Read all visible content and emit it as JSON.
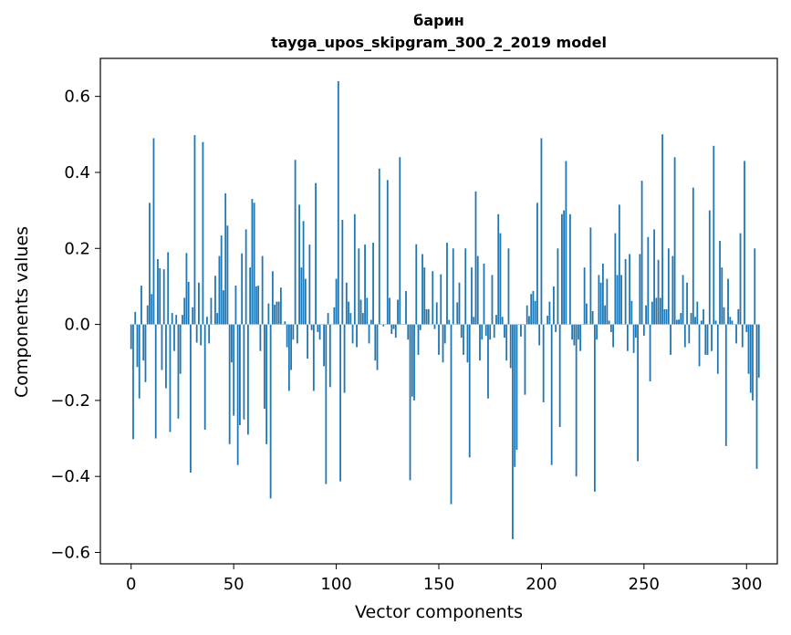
{
  "chart_data": {
    "type": "bar",
    "title": "барин",
    "subtitle": "tayga_upos_skipgram_300_2_2019 model",
    "xlabel": "Vector components",
    "ylabel": "Components values",
    "xlim": [
      -15,
      315
    ],
    "ylim": [
      -0.63,
      0.7
    ],
    "x_ticks": [
      0,
      50,
      100,
      150,
      200,
      250,
      300
    ],
    "y_ticks": [
      -0.6,
      -0.4,
      -0.2,
      0.0,
      0.2,
      0.4,
      0.6
    ],
    "y_tick_labels": [
      "−0.6",
      "−0.4",
      "−0.2",
      "0.0",
      "0.2",
      "0.4",
      "0.6"
    ],
    "grid": false,
    "bar_color": "#1f77b4",
    "values": [
      -0.065,
      -0.302,
      0.033,
      -0.112,
      -0.195,
      0.102,
      -0.095,
      -0.152,
      0.05,
      0.32,
      0.08,
      0.49,
      -0.3,
      0.172,
      0.148,
      -0.12,
      0.145,
      -0.168,
      0.19,
      -0.283,
      0.03,
      -0.07,
      0.025,
      -0.248,
      -0.13,
      0.025,
      0.07,
      0.188,
      0.112,
      -0.39,
      0.045,
      0.498,
      -0.048,
      0.11,
      -0.055,
      0.48,
      -0.277,
      0.02,
      -0.05,
      0.07,
      0.0,
      0.128,
      0.03,
      0.18,
      0.234,
      0.09,
      0.345,
      0.26,
      -0.315,
      -0.1,
      -0.24,
      0.102,
      -0.37,
      -0.265,
      0.187,
      -0.25,
      0.25,
      -0.29,
      0.15,
      0.33,
      0.32,
      0.1,
      0.102,
      -0.07,
      0.18,
      -0.222,
      -0.315,
      0.055,
      -0.458,
      0.14,
      0.052,
      0.06,
      0.06,
      0.097,
      0.0,
      0.008,
      -0.06,
      -0.175,
      -0.12,
      -0.04,
      0.433,
      -0.05,
      0.315,
      0.15,
      0.272,
      0.12,
      -0.09,
      0.21,
      -0.015,
      -0.175,
      0.372,
      -0.02,
      -0.04,
      0.0,
      -0.11,
      -0.42,
      0.03,
      -0.165,
      0.0,
      0.045,
      0.12,
      0.64,
      -0.413,
      0.275,
      -0.18,
      0.11,
      0.06,
      0.03,
      -0.05,
      0.29,
      -0.06,
      0.2,
      0.065,
      0.03,
      0.21,
      0.07,
      -0.05,
      0.012,
      0.215,
      -0.095,
      -0.12,
      0.41,
      0.0,
      -0.005,
      0.0,
      0.38,
      0.07,
      -0.025,
      -0.012,
      -0.035,
      0.065,
      0.44,
      0.0,
      0.0,
      0.088,
      -0.04,
      -0.41,
      -0.19,
      -0.2,
      0.211,
      -0.08,
      -0.015,
      0.185,
      0.15,
      0.04,
      0.04,
      0.0,
      0.14,
      -0.012,
      0.058,
      -0.08,
      0.132,
      -0.1,
      -0.05,
      0.215,
      0.012,
      -0.473,
      0.2,
      0.0,
      0.058,
      0.11,
      -0.035,
      -0.08,
      0.2,
      -0.1,
      -0.35,
      0.15,
      0.02,
      0.35,
      0.18,
      -0.095,
      -0.04,
      0.16,
      -0.03,
      -0.195,
      -0.04,
      0.13,
      -0.035,
      0.025,
      0.29,
      0.24,
      0.02,
      -0.035,
      -0.095,
      0.2,
      -0.115,
      -0.565,
      -0.375,
      -0.33,
      0.0,
      -0.032,
      0.0,
      -0.185,
      0.05,
      0.022,
      0.08,
      0.088,
      0.062,
      0.32,
      -0.055,
      0.49,
      -0.205,
      0.0,
      0.023,
      0.06,
      -0.37,
      0.1,
      -0.02,
      0.2,
      -0.27,
      0.29,
      0.3,
      0.43,
      0.0,
      0.29,
      -0.04,
      -0.055,
      -0.4,
      -0.04,
      -0.07,
      0.0,
      0.15,
      0.055,
      0.0,
      0.255,
      0.035,
      -0.44,
      -0.04,
      0.13,
      0.11,
      0.16,
      0.05,
      0.12,
      0.01,
      -0.02,
      -0.06,
      0.24,
      0.13,
      0.315,
      0.13,
      0.0,
      0.172,
      -0.07,
      0.185,
      0.062,
      -0.075,
      -0.035,
      -0.36,
      0.185,
      0.378,
      -0.03,
      0.05,
      0.23,
      -0.15,
      0.06,
      0.25,
      0.07,
      0.17,
      0.07,
      0.5,
      0.04,
      0.04,
      0.2,
      -0.08,
      0.18,
      0.44,
      0.012,
      0.013,
      0.03,
      0.13,
      -0.06,
      0.11,
      -0.05,
      0.03,
      0.36,
      0.02,
      0.06,
      -0.11,
      0.01,
      0.04,
      -0.08,
      -0.08,
      0.3,
      -0.07,
      0.47,
      0.01,
      -0.13,
      0.22,
      0.15,
      0.045,
      -0.32,
      0.12,
      0.02,
      0.01,
      0.0,
      -0.05,
      0.04,
      0.24,
      -0.06,
      0.43,
      -0.02,
      -0.13,
      -0.18,
      -0.2,
      0.2,
      -0.38,
      -0.14
    ]
  }
}
